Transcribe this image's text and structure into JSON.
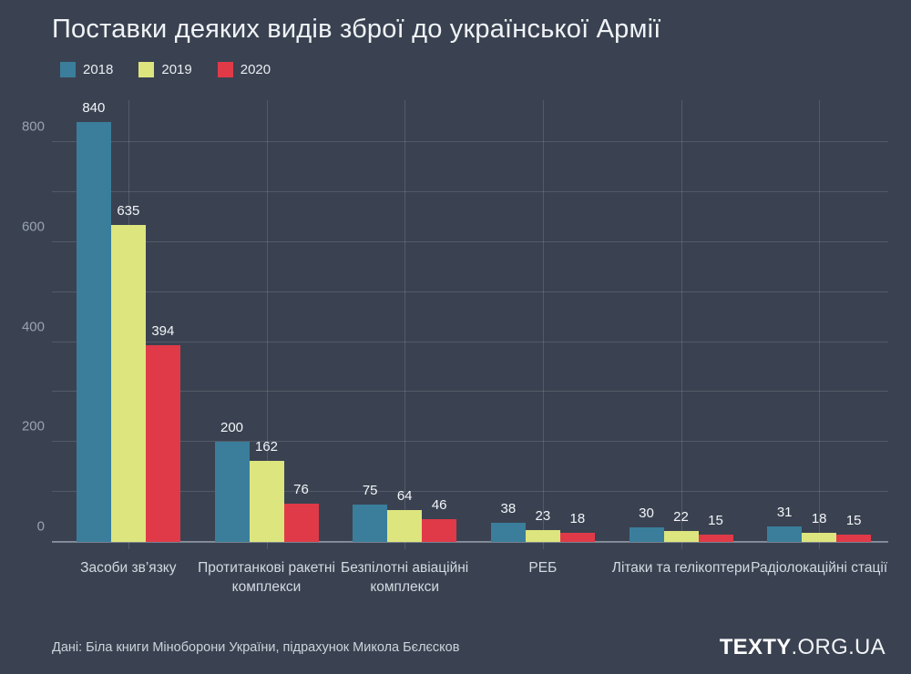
{
  "chart_data": {
    "type": "bar",
    "title": "Поставки деяких видів зброї до української Армії",
    "categories": [
      "Засоби зв’язку",
      "Протитанкові ракетні комплекси",
      "Безпілотні авіаційні комплекси",
      "РЕБ",
      "Літаки та гелікоптери",
      "Радіолокаційні стації"
    ],
    "series": [
      {
        "name": "2018",
        "color": "#3a7e9c",
        "values": [
          840,
          200,
          75,
          38,
          30,
          31
        ]
      },
      {
        "name": "2019",
        "color": "#dde57e",
        "values": [
          635,
          162,
          64,
          23,
          22,
          18
        ]
      },
      {
        "name": "2020",
        "color": "#e03a48",
        "values": [
          394,
          76,
          46,
          18,
          15,
          15
        ]
      }
    ],
    "ylim": [
      0,
      888
    ],
    "yticks_labeled": [
      0,
      200,
      400,
      600,
      800
    ],
    "gridline_step": 100,
    "gridline_max": 800,
    "grid": true,
    "legend_position": "top-left"
  },
  "colors": {
    "background": "#3a4251",
    "series_2018": "#3a7e9c",
    "series_2019": "#dde57e",
    "series_2020": "#e03a48"
  },
  "footer": {
    "source": "Дані: Біла книги Міноборони України, підрахунок Микола Бєлєсков",
    "logo_bold": "TEXTY",
    "logo_rest": ".ORG.UA"
  }
}
